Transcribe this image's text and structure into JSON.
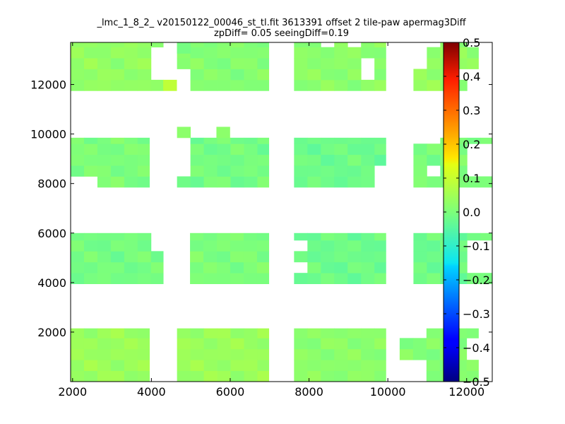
{
  "title_line1": "_lmc_1_8_2_ v20150122_00046_st_tl.fit 3613391 offset 2 tile-paw apermag3Diff",
  "title_line2": "zpDiff= 0.05 seeingDiff=0.19",
  "chart_data": {
    "type": "heatmap",
    "title": "_lmc_1_8_2_ v20150122_00046_st_tl.fit 3613391 offset 2 tile-paw apermag3Diff zpDiff= 0.05 seeingDiff=0.19",
    "xlabel": "",
    "ylabel": "",
    "xlim": [
      1950,
      12650
    ],
    "ylim": [
      0,
      13700
    ],
    "xticks": [
      2000,
      4000,
      6000,
      8000,
      10000,
      12000
    ],
    "yticks": [
      2000,
      4000,
      6000,
      8000,
      10000,
      12000
    ],
    "cell_size": [
      340,
      440
    ],
    "colormap": "jet",
    "clim": [
      -0.5,
      0.5
    ],
    "colorbar_ticks": [
      0.5,
      0.4,
      0.3,
      0.2,
      0.1,
      0.0,
      -0.1,
      -0.2,
      -0.3,
      -0.4,
      -0.5
    ],
    "colorbar_tick_labels": [
      "0.5",
      "0.4",
      "0.3",
      "0.2",
      "0.1",
      "0.0",
      "−0.1",
      "−0.2",
      "−0.3",
      "−0.4",
      "−0.5"
    ],
    "grid": false,
    "legend": "colorbar-right",
    "blocks": [
      {
        "x": [
          1950,
          3950
        ],
        "y": [
          0,
          2150
        ],
        "value": 0.04
      },
      {
        "x": [
          4650,
          6980
        ],
        "y": [
          0,
          2150
        ],
        "value": 0.04
      },
      {
        "x": [
          7620,
          9950
        ],
        "y": [
          0,
          2150
        ],
        "value": 0.02
      },
      {
        "x": [
          10300,
          12300
        ],
        "y": [
          0,
          2150
        ],
        "value": 0.01
      },
      {
        "x": [
          1950,
          4300
        ],
        "y": [
          3950,
          6000
        ],
        "value": -0.01
      },
      {
        "x": [
          4980,
          6980
        ],
        "y": [
          3950,
          6000
        ],
        "value": 0.0
      },
      {
        "x": [
          7620,
          9950
        ],
        "y": [
          3950,
          6000
        ],
        "value": -0.02
      },
      {
        "x": [
          10650,
          12650
        ],
        "y": [
          3950,
          6000
        ],
        "value": -0.02
      },
      {
        "x": [
          1950,
          3950
        ],
        "y": [
          7850,
          9850
        ],
        "value": 0.0
      },
      {
        "x": [
          4650,
          6980
        ],
        "y": [
          7850,
          9850
        ],
        "value": -0.01
      },
      {
        "x": [
          7620,
          9950
        ],
        "y": [
          7850,
          9850
        ],
        "value": -0.02
      },
      {
        "x": [
          10650,
          12650
        ],
        "y": [
          7850,
          9850
        ],
        "value": 0.0
      },
      {
        "x": [
          1950,
          4300
        ],
        "y": [
          11750,
          13700
        ],
        "value": 0.03
      },
      {
        "x": [
          4650,
          6980
        ],
        "y": [
          11750,
          13700
        ],
        "value": 0.01
      },
      {
        "x": [
          7620,
          9950
        ],
        "y": [
          11750,
          13700
        ],
        "value": 0.02
      },
      {
        "x": [
          10650,
          12300
        ],
        "y": [
          11750,
          13700
        ],
        "value": 0.03
      }
    ],
    "extra_cells": [
      {
        "x": [
          4650,
          4990
        ],
        "y": [
          9850,
          10290
        ],
        "value": 0.02
      },
      {
        "x": [
          5650,
          5990
        ],
        "y": [
          9850,
          10290
        ],
        "value": 0.02
      },
      {
        "x": [
          4650,
          4990
        ],
        "y": [
          13260,
          13700
        ],
        "value": -0.01
      },
      {
        "x": [
          4300,
          4640
        ],
        "y": [
          11750,
          12190
        ],
        "value": 0.09
      }
    ],
    "holes": [
      {
        "x": [
          4300,
          4650
        ],
        "y": [
          12190,
          13700
        ]
      },
      {
        "x": [
          3950,
          4300
        ],
        "y": [
          12190,
          13260
        ]
      },
      {
        "x": [
          4650,
          4990
        ],
        "y": [
          11750,
          12630
        ]
      },
      {
        "x": [
          8960,
          9300
        ],
        "y": [
          13260,
          13700
        ]
      },
      {
        "x": [
          9300,
          9620
        ],
        "y": [
          12190,
          12850
        ]
      },
      {
        "x": [
          8300,
          8640
        ],
        "y": [
          13260,
          13700
        ]
      },
      {
        "x": [
          10650,
          10990
        ],
        "y": [
          12630,
          13700
        ]
      },
      {
        "x": [
          10990,
          11300
        ],
        "y": [
          13260,
          13700
        ]
      },
      {
        "x": [
          11990,
          12300
        ],
        "y": [
          13260,
          13700
        ]
      },
      {
        "x": [
          11650,
          12300
        ],
        "y": [
          12190,
          12630
        ]
      },
      {
        "x": [
          11990,
          12300
        ],
        "y": [
          11750,
          12190
        ]
      },
      {
        "x": [
          3950,
          4650
        ],
        "y": [
          7850,
          9850
        ]
      },
      {
        "x": [
          4650,
          4990
        ],
        "y": [
          8280,
          9410
        ]
      },
      {
        "x": [
          4650,
          4990
        ],
        "y": [
          9410,
          9850
        ]
      },
      {
        "x": [
          1950,
          2300
        ],
        "y": [
          7850,
          8280
        ]
      },
      {
        "x": [
          9620,
          9950
        ],
        "y": [
          8280,
          8720
        ]
      },
      {
        "x": [
          9620,
          9950
        ],
        "y": [
          7850,
          8280
        ]
      },
      {
        "x": [
          10990,
          11300
        ],
        "y": [
          8280,
          8720
        ]
      },
      {
        "x": [
          11990,
          12650
        ],
        "y": [
          8280,
          9410
        ]
      },
      {
        "x": [
          10650,
          11300
        ],
        "y": [
          9410,
          9850
        ]
      },
      {
        "x": [
          7620,
          7950
        ],
        "y": [
          5140,
          5580
        ]
      },
      {
        "x": [
          7620,
          7950
        ],
        "y": [
          4280,
          4710
        ]
      },
      {
        "x": [
          9960,
          10300
        ],
        "y": [
          5140,
          6000
        ]
      },
      {
        "x": [
          11990,
          12650
        ],
        "y": [
          4280,
          5580
        ]
      },
      {
        "x": [
          3950,
          4300
        ],
        "y": [
          5140,
          6000
        ]
      },
      {
        "x": [
          10300,
          10650
        ],
        "y": [
          1720,
          2150
        ]
      },
      {
        "x": [
          11990,
          12300
        ],
        "y": [
          710,
          1720
        ]
      },
      {
        "x": [
          10300,
          10650
        ],
        "y": [
          0,
          710
        ]
      },
      {
        "x": [
          12300,
          12650
        ],
        "y": [
          1720,
          2150
        ]
      }
    ]
  }
}
